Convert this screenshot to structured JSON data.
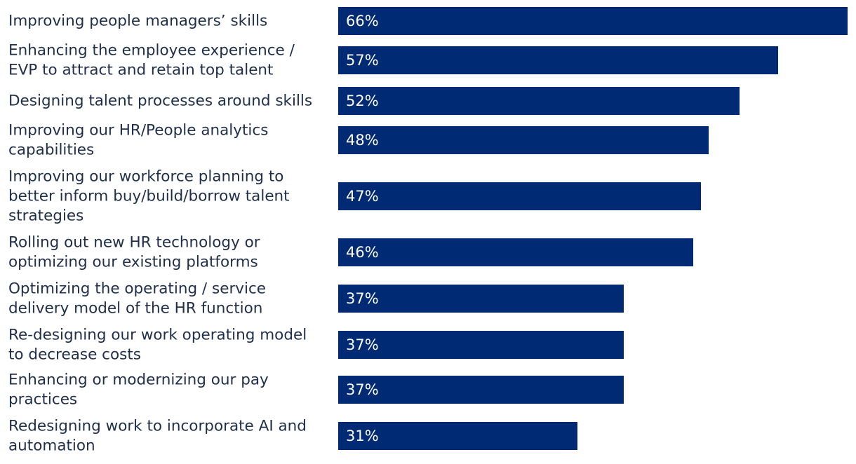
{
  "chart_data": {
    "type": "bar",
    "orientation": "horizontal",
    "bar_color": "#002a73",
    "label_color": "#1f2e4a",
    "value_label_color": "#ffffff",
    "value_suffix": "%",
    "categories": [
      "Improving people managers’ skills",
      "Enhancing the employee experience / EVP to attract and retain top talent",
      "Designing talent processes around skills",
      "Improving our HR/People analytics capabilities",
      "Improving our workforce planning to better inform buy/build/borrow talent strategies",
      "Rolling out new HR technology or optimizing our existing platforms",
      "Optimizing the operating / service delivery model of the HR function",
      "Re-designing our work operating model to decrease costs",
      "Enhancing or modernizing our pay practices",
      "Redesigning work to incorporate AI and automation"
    ],
    "label_lines": [
      [
        "Improving people managers’ skills"
      ],
      [
        "Enhancing the employee experience /",
        "EVP to attract and retain top talent"
      ],
      [
        "Designing talent processes around skills"
      ],
      [
        "Improving our HR/People analytics",
        "capabilities"
      ],
      [
        "Improving our workforce planning to",
        "better inform buy/build/borrow talent",
        "strategies"
      ],
      [
        "Rolling out new HR technology or",
        "optimizing our existing platforms"
      ],
      [
        "Optimizing the operating / service",
        "delivery model of the HR function"
      ],
      [
        "Re-designing our work operating model",
        "to decrease costs"
      ],
      [
        "Enhancing or modernizing our pay",
        "practices"
      ],
      [
        "Redesigning work to incorporate AI and",
        "automation"
      ]
    ],
    "values": [
      66,
      57,
      52,
      48,
      47,
      46,
      37,
      37,
      37,
      31
    ],
    "value_labels": [
      "66%",
      "57%",
      "52%",
      "48%",
      "47%",
      "46%",
      "37%",
      "37%",
      "37%",
      "31%"
    ],
    "xlim": [
      0,
      66
    ],
    "grid": false,
    "legend": "none"
  }
}
